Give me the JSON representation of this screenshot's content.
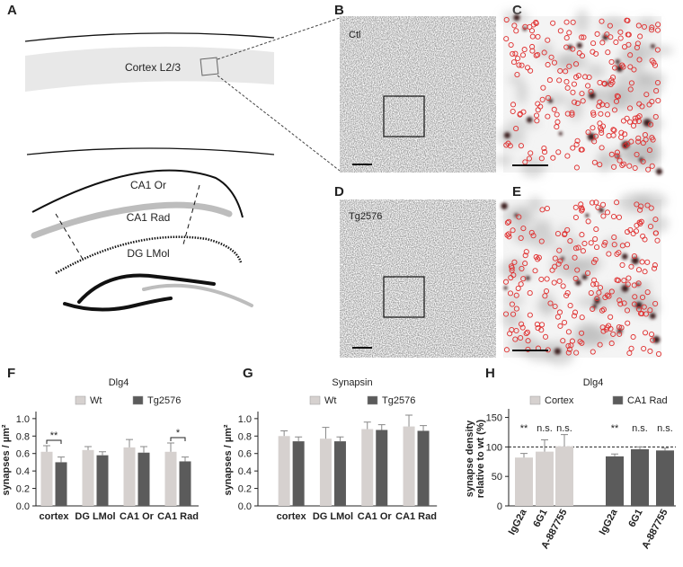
{
  "panel_labels": [
    "A",
    "B",
    "C",
    "D",
    "E",
    "F",
    "G",
    "H"
  ],
  "diagram": {
    "cortex": "Cortex L2/3",
    "ca1_or": "CA1 Or",
    "ca1_rad": "CA1 Rad",
    "dg_lmol": "DG LMol"
  },
  "micrographs": {
    "B": "Ctl",
    "D": "Tg2576"
  },
  "chart_data": [
    {
      "type": "bar",
      "title": "Dlg4",
      "y_label": "synapses / µm²",
      "categories": [
        "cortex",
        "DG LMol",
        "CA1 Or",
        "CA1 Rad"
      ],
      "series": [
        {
          "name": "Wt",
          "color": "#d6d1cf",
          "values": [
            0.62,
            0.64,
            0.67,
            0.62
          ],
          "errors": [
            0.07,
            0.04,
            0.09,
            0.1
          ]
        },
        {
          "name": "Tg2576",
          "color": "#5b5b5b",
          "values": [
            0.5,
            0.58,
            0.61,
            0.51
          ],
          "errors": [
            0.06,
            0.04,
            0.07,
            0.05
          ]
        }
      ],
      "ylim": [
        0,
        1.05
      ],
      "yticks": [
        {
          "value": 0,
          "label": "0.0"
        },
        {
          "value": 0.2,
          "label": "0.2"
        },
        {
          "value": 0.4,
          "label": "0.4"
        },
        {
          "value": 0.6,
          "label": "0.6"
        },
        {
          "value": 0.8,
          "label": "0.8"
        },
        {
          "value": 1,
          "label": "1.0"
        }
      ],
      "significance": [
        "**",
        null,
        null,
        "*"
      ],
      "legend": "top"
    },
    {
      "type": "bar",
      "title": "Synapsin",
      "y_label": "synapses / µm²",
      "categories": [
        "cortex",
        "DG LMol",
        "CA1 Or",
        "CA1 Rad"
      ],
      "series": [
        {
          "name": "Wt",
          "color": "#d6d1cf",
          "values": [
            0.8,
            0.77,
            0.88,
            0.91
          ],
          "errors": [
            0.06,
            0.13,
            0.08,
            0.13
          ]
        },
        {
          "name": "Tg2576",
          "color": "#5b5b5b",
          "values": [
            0.74,
            0.74,
            0.87,
            0.86
          ],
          "errors": [
            0.05,
            0.05,
            0.06,
            0.06
          ]
        }
      ],
      "ylim": [
        0,
        1.05
      ],
      "yticks": [
        {
          "value": 0,
          "label": "0.0"
        },
        {
          "value": 0.2,
          "label": "0.2"
        },
        {
          "value": 0.4,
          "label": "0.4"
        },
        {
          "value": 0.6,
          "label": "0.6"
        },
        {
          "value": 0.8,
          "label": "0.8"
        },
        {
          "value": 1,
          "label": "1.0"
        }
      ],
      "legend": "top"
    },
    {
      "type": "bar",
      "title": "Dlg4",
      "y_label": [
        "synapse density",
        "relative to wt (%)"
      ],
      "categories": [
        "IgG2a",
        "6G1",
        "A-887755",
        "IgG2a",
        "6G1",
        "A-887755"
      ],
      "series": [
        {
          "name": "Cortex",
          "color": "#d6d1cf",
          "values": [
            82,
            92,
            101,
            null,
            null,
            null
          ],
          "errors": [
            7,
            20,
            20,
            null,
            null,
            null
          ]
        },
        {
          "name": "CA1 Rad",
          "color": "#5b5b5b",
          "values": [
            null,
            null,
            null,
            84,
            96,
            94
          ],
          "errors": [
            null,
            null,
            null,
            4,
            4,
            4
          ]
        }
      ],
      "ylim": [
        0,
        160
      ],
      "yticks": [
        0,
        50,
        100,
        150
      ],
      "reference_line": 100,
      "significance": [
        "**",
        "n.s.",
        "n.s.",
        "**",
        "n.s.",
        "n.s."
      ],
      "legend": "top"
    }
  ]
}
